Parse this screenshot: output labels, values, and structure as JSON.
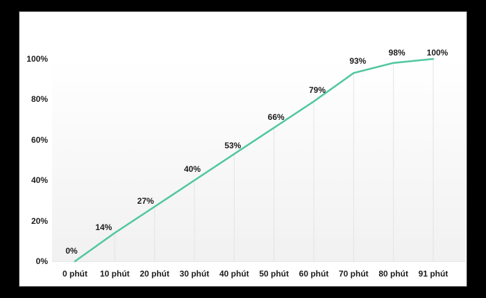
{
  "window": {
    "background_color": "#000000",
    "panel_color": "#ffffff"
  },
  "chart_data": {
    "type": "line",
    "title": "",
    "xlabel": "",
    "ylabel": "",
    "categories": [
      "0 phút",
      "10 phút",
      "20 phút",
      "30 phút",
      "40 phút",
      "50 phút",
      "60 phút",
      "70 phút",
      "80 phút",
      "91 phút"
    ],
    "values": [
      0,
      14,
      27,
      40,
      53,
      66,
      79,
      93,
      98,
      100
    ],
    "data_labels": [
      "0%",
      "14%",
      "27%",
      "40%",
      "53%",
      "66%",
      "79%",
      "93%",
      "98%",
      "100%"
    ],
    "y_tick_labels": [
      "0%",
      "20%",
      "40%",
      "60%",
      "80%",
      "100%"
    ],
    "y_tick_values": [
      0,
      20,
      40,
      60,
      80,
      100
    ],
    "ylim": [
      0,
      100
    ],
    "legend": "none",
    "grid": "vertical-drop-lines",
    "markers": "none",
    "line_color": "#52c7a1",
    "label_color": "#1c1c1c",
    "dropline_color": "#e3e3e3",
    "baseline_color": "#e6e6e6",
    "plot_bg_top": "#ffffff",
    "plot_bg_bottom": "#f1f1f1"
  }
}
